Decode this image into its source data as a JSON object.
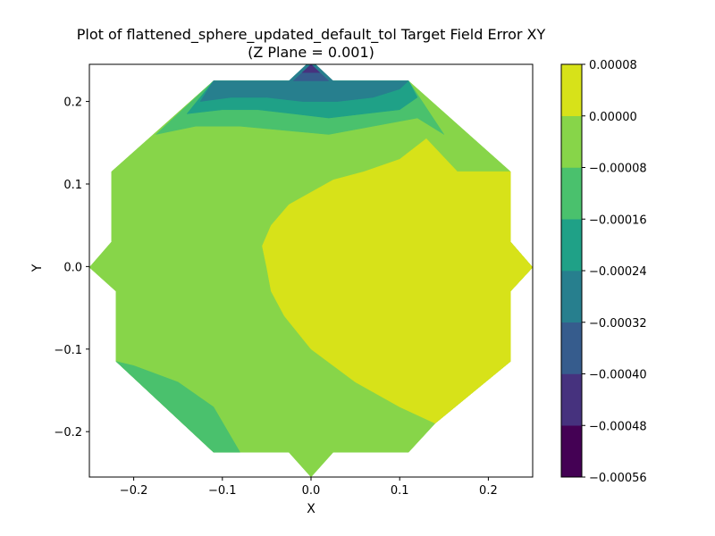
{
  "chart_data": {
    "type": "contour",
    "title_line1": "Plot of flattened_sphere_updated_default_tol Target Field Error XY",
    "title_line2": "(Z Plane = 0.001)",
    "xlabel": "X",
    "ylabel": "Y",
    "xlim": [
      -0.25,
      0.25
    ],
    "ylim": [
      -0.255,
      0.245
    ],
    "xticks": [
      -0.2,
      -0.1,
      0.0,
      0.1,
      0.2
    ],
    "yticks": [
      -0.2,
      -0.1,
      0.0,
      0.1,
      0.2
    ],
    "xtick_labels": [
      "−0.2",
      "−0.1",
      "0.0",
      "0.1",
      "0.2"
    ],
    "ytick_labels": [
      "−0.2",
      "−0.1",
      "0.0",
      "0.1",
      "0.2"
    ],
    "colorbar": {
      "levels": [
        -0.00056,
        -0.00048,
        -0.0004,
        -0.00032,
        -0.00024,
        -0.00016,
        -8e-05,
        0.0,
        8e-05
      ],
      "tick_labels": [
        "−0.00056",
        "−0.00048",
        "−0.00040",
        "−0.00032",
        "−0.00024",
        "−0.00016",
        "−0.00008",
        "0.00000",
        "0.00008"
      ],
      "colors": [
        "#440154",
        "#46327e",
        "#365c8d",
        "#277f8e",
        "#1fa187",
        "#4ac16d",
        "#87d549",
        "#d7e219"
      ]
    },
    "regions": [
      {
        "band": 6,
        "points": [
          [
            -0.25,
            -0.001
          ],
          [
            -0.22,
            -0.03
          ],
          [
            -0.22,
            -0.115
          ],
          [
            -0.11,
            -0.225
          ],
          [
            0.11,
            -0.225
          ],
          [
            0.14,
            -0.19
          ],
          [
            0.225,
            -0.115
          ],
          [
            0.225,
            -0.03
          ],
          [
            0.25,
            -0.001
          ],
          [
            0.225,
            0.03
          ],
          [
            0.225,
            0.115
          ],
          [
            0.11,
            0.225
          ],
          [
            -0.11,
            0.225
          ],
          [
            -0.225,
            0.115
          ],
          [
            -0.225,
            0.03
          ]
        ]
      },
      {
        "band": 6,
        "points": [
          [
            -0.025,
            -0.225
          ],
          [
            0.0,
            -0.255
          ],
          [
            0.025,
            -0.225
          ]
        ]
      },
      {
        "band": 7,
        "points": [
          [
            -0.05,
            -0.001
          ],
          [
            -0.055,
            0.025
          ],
          [
            -0.045,
            0.05
          ],
          [
            -0.025,
            0.075
          ],
          [
            0.0,
            0.09
          ],
          [
            0.025,
            0.105
          ],
          [
            0.06,
            0.115
          ],
          [
            0.1,
            0.13
          ],
          [
            0.13,
            0.155
          ],
          [
            0.165,
            0.115
          ],
          [
            0.225,
            0.115
          ],
          [
            0.225,
            0.03
          ],
          [
            0.25,
            -0.001
          ],
          [
            0.225,
            -0.03
          ],
          [
            0.225,
            -0.115
          ],
          [
            0.14,
            -0.19
          ],
          [
            0.1,
            -0.17
          ],
          [
            0.05,
            -0.14
          ],
          [
            0.0,
            -0.1
          ],
          [
            -0.03,
            -0.06
          ],
          [
            -0.045,
            -0.03
          ]
        ]
      },
      {
        "band": 5,
        "points": [
          [
            -0.22,
            -0.115
          ],
          [
            -0.2,
            -0.12
          ],
          [
            -0.15,
            -0.14
          ],
          [
            -0.11,
            -0.17
          ],
          [
            -0.08,
            -0.225
          ],
          [
            -0.11,
            -0.225
          ]
        ]
      },
      {
        "band": 5,
        "points": [
          [
            -0.175,
            0.16
          ],
          [
            -0.13,
            0.17
          ],
          [
            -0.08,
            0.17
          ],
          [
            -0.03,
            0.165
          ],
          [
            0.02,
            0.16
          ],
          [
            0.07,
            0.17
          ],
          [
            0.12,
            0.18
          ],
          [
            0.15,
            0.16
          ],
          [
            0.11,
            0.225
          ],
          [
            -0.11,
            0.225
          ]
        ]
      },
      {
        "band": 4,
        "points": [
          [
            -0.14,
            0.185
          ],
          [
            -0.1,
            0.19
          ],
          [
            -0.06,
            0.19
          ],
          [
            -0.02,
            0.185
          ],
          [
            0.02,
            0.18
          ],
          [
            0.06,
            0.185
          ],
          [
            0.1,
            0.19
          ],
          [
            0.12,
            0.205
          ],
          [
            0.11,
            0.225
          ],
          [
            -0.11,
            0.225
          ]
        ]
      },
      {
        "band": 3,
        "points": [
          [
            -0.125,
            0.2
          ],
          [
            -0.09,
            0.205
          ],
          [
            -0.05,
            0.205
          ],
          [
            -0.01,
            0.2
          ],
          [
            0.03,
            0.2
          ],
          [
            0.07,
            0.205
          ],
          [
            0.1,
            0.215
          ],
          [
            0.11,
            0.225
          ],
          [
            -0.11,
            0.225
          ]
        ]
      },
      {
        "band": 3,
        "points": [
          [
            -0.025,
            0.225
          ],
          [
            -0.005,
            0.245
          ],
          [
            0.005,
            0.245
          ],
          [
            0.025,
            0.225
          ]
        ]
      },
      {
        "band": 2,
        "points": [
          [
            -0.02,
            0.225
          ],
          [
            0.0,
            0.245
          ],
          [
            0.02,
            0.225
          ]
        ]
      },
      {
        "band": 1,
        "points": [
          [
            -0.01,
            0.235
          ],
          [
            0.0,
            0.245
          ],
          [
            0.01,
            0.235
          ]
        ]
      }
    ]
  }
}
